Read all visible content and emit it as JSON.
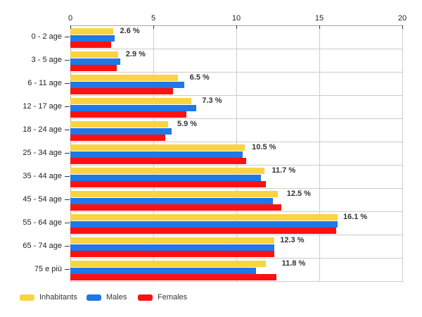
{
  "chart_data": {
    "type": "bar",
    "orientation": "horizontal",
    "title": "",
    "xlabel": "",
    "ylabel": "",
    "xlim": [
      0,
      20
    ],
    "x_ticks": [
      "0",
      "5",
      "10",
      "15",
      "20"
    ],
    "grid": true,
    "legend_position": "bottom-left",
    "categories": [
      "0 - 2 age",
      "3 - 5 age",
      "6 - 11 age",
      "12 - 17 age",
      "18 - 24 age",
      "25 - 34 age",
      "35 - 44 age",
      "45 - 54 age",
      "55 - 64 age",
      "65 - 74 age",
      "75 e più"
    ],
    "series": [
      {
        "name": "Inhabitants",
        "color": "#FAD342",
        "values": [
          2.6,
          2.9,
          6.5,
          7.3,
          5.9,
          10.5,
          11.7,
          12.5,
          16.1,
          12.3,
          11.8
        ]
      },
      {
        "name": "Males",
        "color": "#1E78E8",
        "values": [
          2.65,
          3.0,
          6.85,
          7.6,
          6.1,
          10.4,
          11.5,
          12.2,
          16.1,
          12.3,
          11.2
        ]
      },
      {
        "name": "Females",
        "color": "#FA1212",
        "values": [
          2.45,
          2.8,
          6.2,
          7.0,
          5.7,
          10.6,
          11.8,
          12.7,
          16.0,
          12.3,
          12.4
        ]
      }
    ],
    "bar_labels": [
      "2.6 %",
      "2.9 %",
      "6.5 %",
      "7.3 %",
      "5.9 %",
      "10.5 %",
      "11.7 %",
      "12.5 %",
      "16.1 %",
      "12.3 %",
      "11.8 %"
    ],
    "colors": {
      "grid": "#cccccc",
      "axis": "#a6a6a6",
      "tick": "#333333",
      "axis_text": "#222222",
      "value_label_text": "#333333",
      "background": "#ffffff"
    }
  }
}
